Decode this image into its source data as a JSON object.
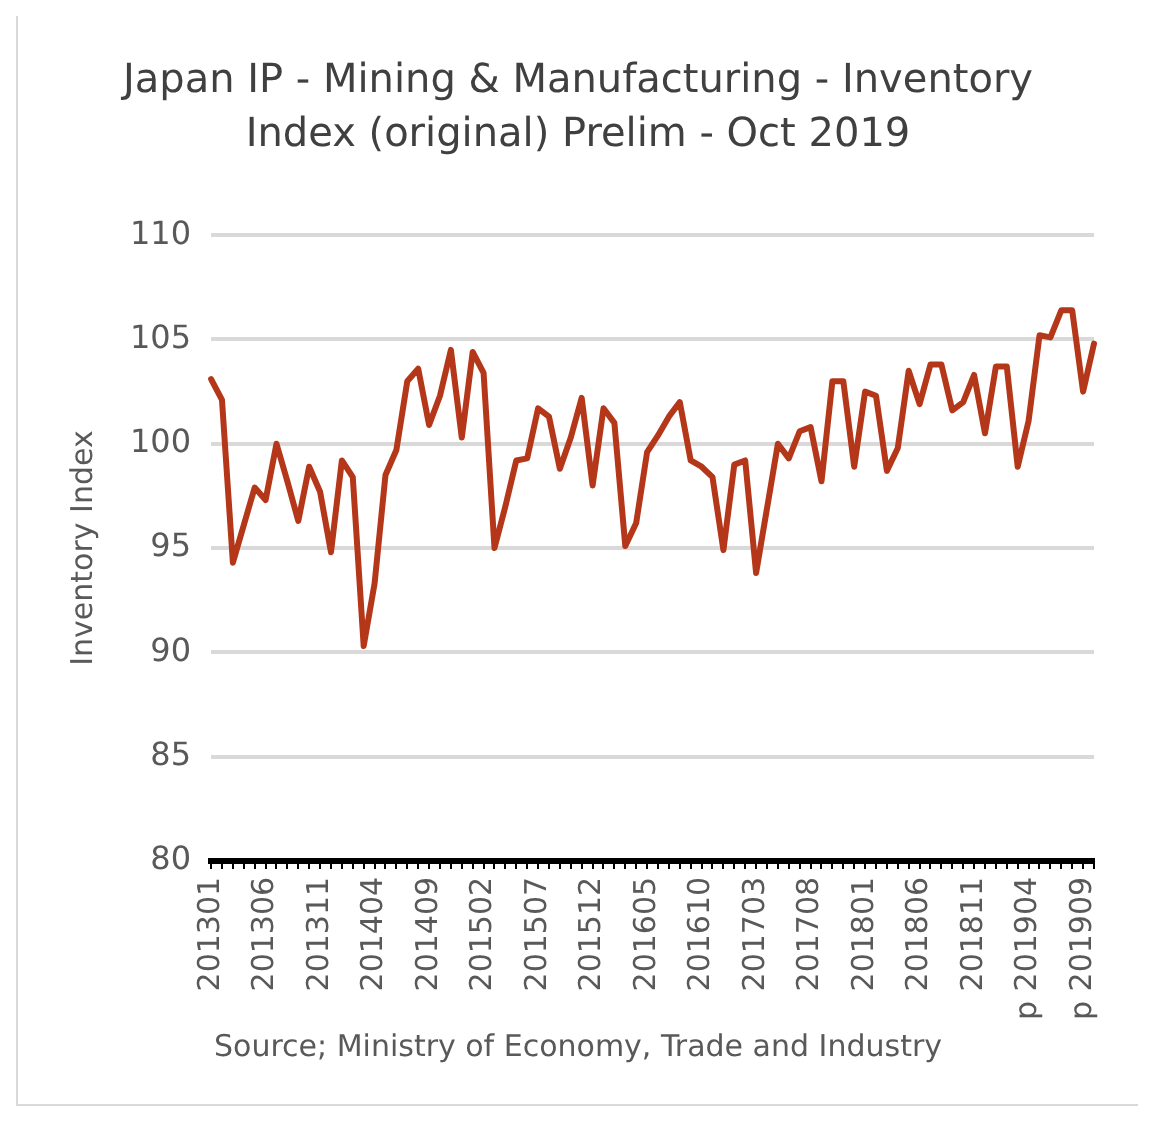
{
  "chart_data": {
    "type": "line",
    "title": "Japan IP - Mining & Manufacturing - Inventory Index (original) Prelim - Oct 2019",
    "ylabel": "Inventory Index",
    "annotations": [
      "Source; Ministry of Economy, Trade and Industry"
    ],
    "categories": [
      "201301",
      null,
      null,
      null,
      null,
      "201306",
      null,
      null,
      null,
      null,
      "201311",
      null,
      null,
      null,
      null,
      "201404",
      null,
      null,
      null,
      null,
      "201409",
      null,
      null,
      null,
      null,
      "201502",
      null,
      null,
      null,
      null,
      "201507",
      null,
      null,
      null,
      null,
      "201512",
      null,
      null,
      null,
      null,
      "201605",
      null,
      null,
      null,
      null,
      "201610",
      null,
      null,
      null,
      null,
      "201703",
      null,
      null,
      null,
      null,
      "201708",
      null,
      null,
      null,
      null,
      "201801",
      null,
      null,
      null,
      null,
      "201806",
      null,
      null,
      null,
      null,
      "201811",
      null,
      null,
      null,
      null,
      "p 201904",
      null,
      null,
      null,
      null,
      "p 201909",
      null
    ],
    "series": [
      {
        "color": "#b5371a",
        "values": [
          103.1,
          102.1,
          94.3,
          96.1,
          97.9,
          97.3,
          100.0,
          98.2,
          96.3,
          98.9,
          97.7,
          94.8,
          99.2,
          98.4,
          90.3,
          93.3,
          98.5,
          99.7,
          103.0,
          103.6,
          100.9,
          102.3,
          104.5,
          100.3,
          104.4,
          103.4,
          95.0,
          97.0,
          99.2,
          99.3,
          101.7,
          101.3,
          98.8,
          100.3,
          102.2,
          98.0,
          101.7,
          101.0,
          95.1,
          96.2,
          99.6,
          100.4,
          101.3,
          102.0,
          99.2,
          98.9,
          98.4,
          94.9,
          99.0,
          99.2,
          93.8,
          96.9,
          100.0,
          99.3,
          100.6,
          100.8,
          98.2,
          103.0,
          103.0,
          98.9,
          102.5,
          102.3,
          98.7,
          99.8,
          103.5,
          101.9,
          103.8,
          103.8,
          101.6,
          102.0,
          103.3,
          100.5,
          103.7,
          103.7,
          98.9,
          101.1,
          105.2,
          105.1,
          106.4,
          106.4,
          102.5,
          104.8
        ]
      }
    ],
    "ylim": [
      80,
      110
    ],
    "yticks": [
      80,
      85,
      90,
      95,
      100,
      105,
      110
    ],
    "grid": "y",
    "legend": false,
    "marker": "none",
    "line_style": "solid"
  }
}
